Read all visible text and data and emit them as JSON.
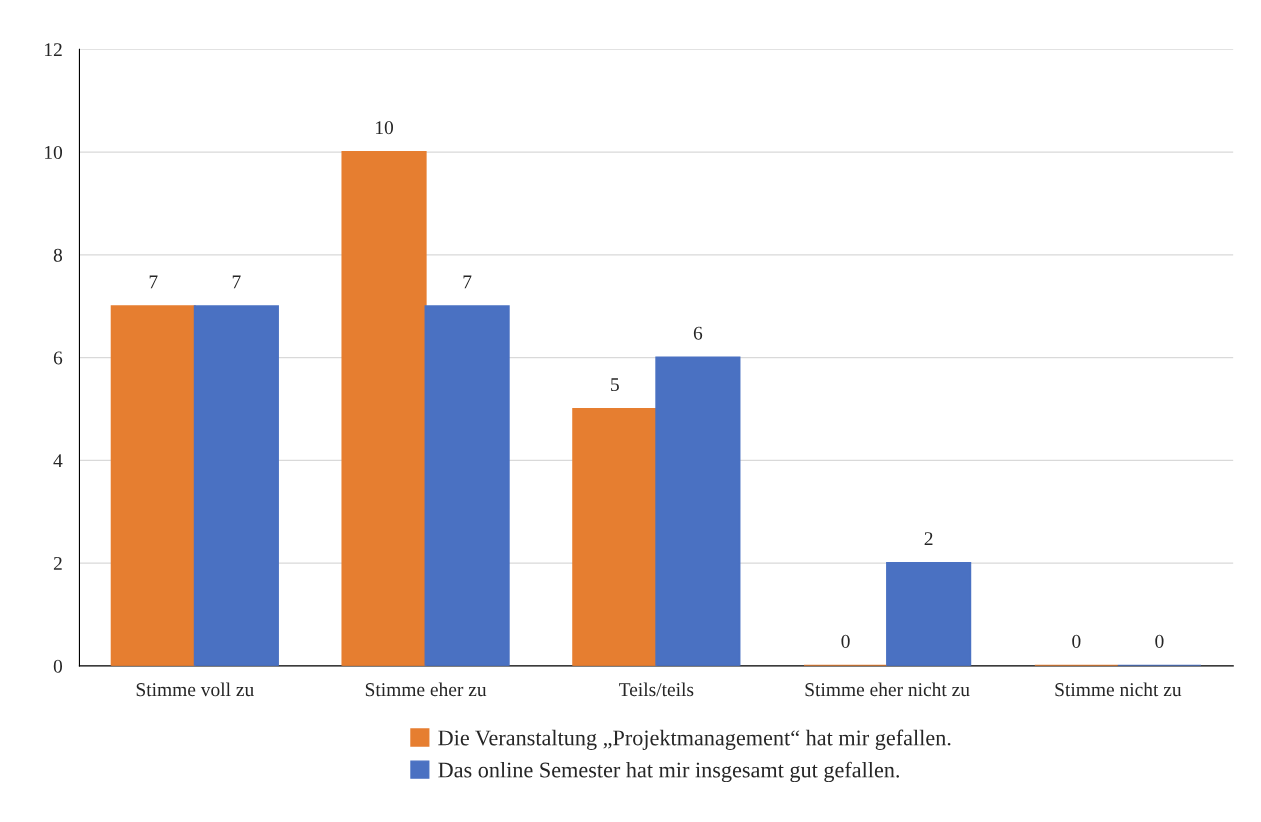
{
  "chart_data": {
    "type": "bar",
    "categories": [
      "Stimme voll zu",
      "Stimme eher zu",
      "Teils/teils",
      "Stimme eher nicht zu",
      "Stimme nicht zu"
    ],
    "series": [
      {
        "name": "Die Veranstaltung „Projektmanagement“ hat mir gefallen.",
        "color": "#e67e30",
        "values": [
          7,
          10,
          5,
          0,
          0
        ]
      },
      {
        "name": "Das online Semester hat mir insgesamt gut gefallen.",
        "color": "#4a71c2",
        "values": [
          7,
          7,
          6,
          2,
          0
        ]
      }
    ],
    "ylim": [
      0,
      12
    ],
    "yticks": [
      0,
      2,
      4,
      6,
      8,
      10,
      12
    ],
    "grid": "y",
    "legend": "bottom",
    "data_labels": true
  }
}
